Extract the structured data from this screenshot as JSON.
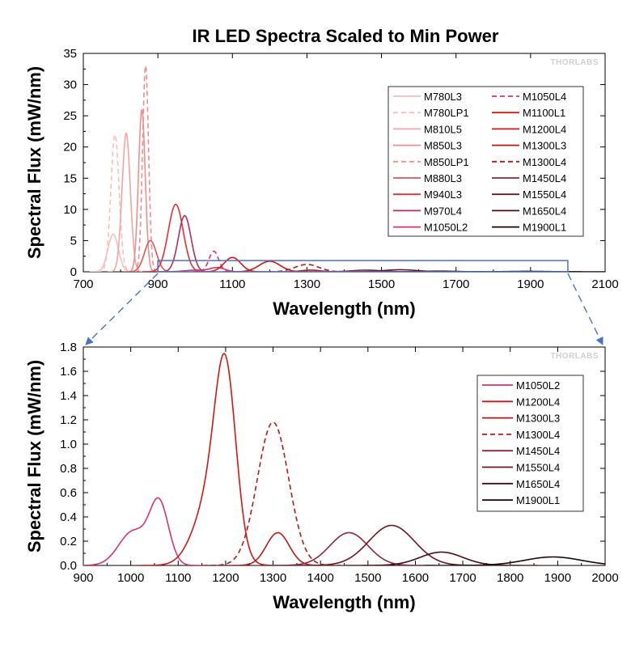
{
  "title": "IR LED Spectra Scaled to Min Power",
  "watermark": "THORLABS",
  "colors": {
    "M780L3": "#f9bdbd",
    "M780LP1": "#f9bdbd",
    "M810L5": "#f4a3a3",
    "M850L3": "#ee8e8e",
    "M850LP1": "#ee8e8e",
    "M880L3": "#e05656",
    "M940L3": "#e53030",
    "M970L4": "#b0305a",
    "M1050L2": "#d6336c",
    "M1050L4": "#d6336c",
    "M1100L1": "#dd1414",
    "M1200L4": "#d31515",
    "M1300L3": "#b81818",
    "M1300L4": "#b81818",
    "M1450L4": "#8e2540",
    "M1550L4": "#6e1620",
    "M1650L4": "#4a0c12",
    "M1900L1": "#1a0505",
    "zoom": "#4a72c4"
  },
  "chart_data": [
    {
      "type": "line",
      "title": "IR LED Spectra Scaled to Min Power",
      "xlabel": "Wavelength (nm)",
      "ylabel": "Spectral Flux (mW/nm)",
      "xlim": [
        700,
        2100
      ],
      "ylim": [
        0,
        35
      ],
      "xticks": [
        700,
        900,
        1100,
        1300,
        1500,
        1700,
        1900,
        2100
      ],
      "yticks": [
        0,
        5,
        10,
        15,
        20,
        25,
        30,
        35
      ],
      "grid": false,
      "legend_position": "top-right",
      "zoom_box": {
        "x": [
          900,
          2000
        ],
        "y": [
          0,
          1.8
        ]
      },
      "legend": [
        "M780L3",
        "M780LP1",
        "M810L5",
        "M850L3",
        "M850LP1",
        "M880L3",
        "M940L3",
        "M970L4",
        "M1050L2",
        "M1050L4",
        "M1100L1",
        "M1200L4",
        "M1300L3",
        "M1300L4",
        "M1450L4",
        "M1550L4",
        "M1650L4",
        "M1900L1"
      ],
      "series": [
        {
          "name": "M780L3",
          "dashed": false,
          "peaks": [
            {
              "x": 780,
              "y": 6,
              "s": 14
            }
          ]
        },
        {
          "name": "M780LP1",
          "dashed": true,
          "peaks": [
            {
              "x": 785,
              "y": 22,
              "s": 11
            }
          ]
        },
        {
          "name": "M810L5",
          "dashed": false,
          "peaks": [
            {
              "x": 815,
              "y": 22.2,
              "s": 11
            }
          ]
        },
        {
          "name": "M850L3",
          "dashed": false,
          "peaks": [
            {
              "x": 857,
              "y": 26,
              "s": 9
            }
          ]
        },
        {
          "name": "M850LP1",
          "dashed": true,
          "peaks": [
            {
              "x": 867,
              "y": 33,
              "s": 8
            }
          ]
        },
        {
          "name": "M880L3",
          "dashed": false,
          "peaks": [
            {
              "x": 880,
              "y": 5,
              "s": 16
            }
          ]
        },
        {
          "name": "M940L3",
          "dashed": false,
          "peaks": [
            {
              "x": 948,
              "y": 10.8,
              "s": 20
            }
          ]
        },
        {
          "name": "M970L4",
          "dashed": false,
          "peaks": [
            {
              "x": 972,
              "y": 9,
              "s": 17
            }
          ]
        },
        {
          "name": "M1050L2",
          "dashed": false,
          "peaks": [
            {
              "x": 1060,
              "y": 0.65,
              "s": 20
            },
            {
              "x": 1000,
              "y": 0.25,
              "s": 30
            }
          ]
        },
        {
          "name": "M1050L4",
          "dashed": true,
          "peaks": [
            {
              "x": 1050,
              "y": 3.3,
              "s": 13
            }
          ]
        },
        {
          "name": "M1100L1",
          "dashed": false,
          "peaks": [
            {
              "x": 1100,
              "y": 2.3,
              "s": 22
            }
          ]
        },
        {
          "name": "M1200L4",
          "dashed": false,
          "peaks": [
            {
              "x": 1200,
              "y": 1.7,
              "s": 28
            }
          ]
        },
        {
          "name": "M1300L3",
          "dashed": false,
          "peaks": [
            {
              "x": 1310,
              "y": 0.27,
              "s": 25
            }
          ]
        },
        {
          "name": "M1300L4",
          "dashed": true,
          "peaks": [
            {
              "x": 1300,
              "y": 1.18,
              "s": 32
            }
          ]
        },
        {
          "name": "M1450L4",
          "dashed": false,
          "peaks": [
            {
              "x": 1460,
              "y": 0.27,
              "s": 40
            }
          ]
        },
        {
          "name": "M1550L4",
          "dashed": false,
          "peaks": [
            {
              "x": 1550,
              "y": 0.33,
              "s": 45
            }
          ]
        },
        {
          "name": "M1650L4",
          "dashed": false,
          "peaks": [
            {
              "x": 1655,
              "y": 0.11,
              "s": 45
            }
          ]
        },
        {
          "name": "M1900L1",
          "dashed": false,
          "peaks": [
            {
              "x": 1890,
              "y": 0.07,
              "s": 55
            }
          ]
        }
      ]
    },
    {
      "type": "line",
      "title": "",
      "xlabel": "Wavelength (nm)",
      "ylabel": "Spectral Flux (mW/nm)",
      "xlim": [
        900,
        2000
      ],
      "ylim": [
        0,
        1.8
      ],
      "xticks": [
        900,
        1000,
        1100,
        1200,
        1300,
        1400,
        1500,
        1600,
        1700,
        1800,
        1900,
        2000
      ],
      "yticks": [
        0.0,
        0.2,
        0.4,
        0.6,
        0.8,
        1.0,
        1.2,
        1.4,
        1.6,
        1.8
      ],
      "ytick_labels": [
        "0.0",
        "0.2",
        "0.4",
        "0.6",
        "0.8",
        "1.0",
        "1.2",
        "1.4",
        "1.6",
        "1.8"
      ],
      "grid": false,
      "legend_position": "top-right",
      "legend": [
        "M1050L2",
        "M1200L4",
        "M1300L3",
        "M1300L4",
        "M1450L4",
        "M1550L4",
        "M1650L4",
        "M1900L1"
      ],
      "series": [
        {
          "name": "M1050L2",
          "dashed": false,
          "peaks": [
            {
              "x": 1060,
              "y": 0.5,
              "s": 20
            },
            {
              "x": 1005,
              "y": 0.28,
              "s": 30
            }
          ]
        },
        {
          "name": "M1200L4",
          "dashed": false,
          "peaks": [
            {
              "x": 1200,
              "y": 1.35,
              "s": 22
            },
            {
              "x": 1170,
              "y": 0.55,
              "s": 35
            }
          ]
        },
        {
          "name": "M1300L3",
          "dashed": false,
          "peaks": [
            {
              "x": 1310,
              "y": 0.27,
              "s": 24
            }
          ]
        },
        {
          "name": "M1300L4",
          "dashed": true,
          "peaks": [
            {
              "x": 1300,
              "y": 1.18,
              "s": 33
            }
          ]
        },
        {
          "name": "M1450L4",
          "dashed": false,
          "peaks": [
            {
              "x": 1460,
              "y": 0.27,
              "s": 40
            }
          ]
        },
        {
          "name": "M1550L4",
          "dashed": false,
          "peaks": [
            {
              "x": 1550,
              "y": 0.33,
              "s": 48
            }
          ]
        },
        {
          "name": "M1650L4",
          "dashed": false,
          "peaks": [
            {
              "x": 1655,
              "y": 0.11,
              "s": 45
            }
          ]
        },
        {
          "name": "M1900L1",
          "dashed": false,
          "peaks": [
            {
              "x": 1890,
              "y": 0.07,
              "s": 60
            }
          ]
        }
      ]
    }
  ]
}
